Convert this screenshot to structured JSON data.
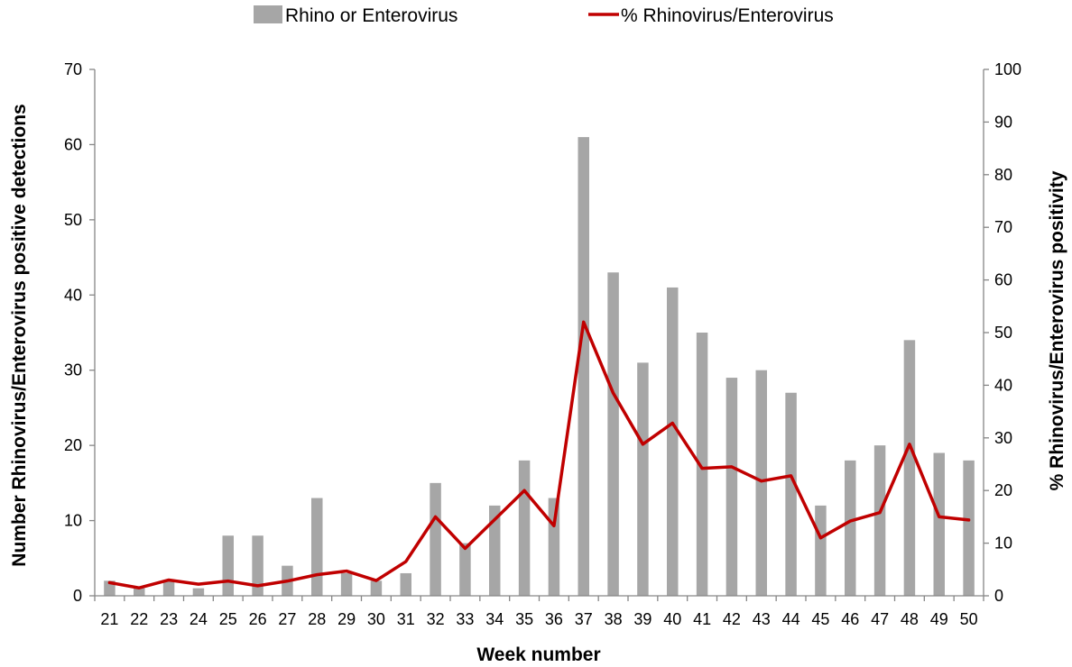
{
  "chart_data": {
    "type": "bar",
    "categories": [
      "21",
      "22",
      "23",
      "24",
      "25",
      "26",
      "27",
      "28",
      "29",
      "30",
      "31",
      "32",
      "33",
      "34",
      "35",
      "36",
      "37",
      "38",
      "39",
      "40",
      "41",
      "42",
      "43",
      "44",
      "45",
      "46",
      "47",
      "48",
      "49",
      "50"
    ],
    "series": [
      {
        "name": "Rhino or Enterovirus",
        "type": "bar",
        "axis": "left",
        "color": "#a6a6a6",
        "values": [
          2,
          1,
          2,
          1,
          8,
          8,
          4,
          13,
          3,
          2,
          3,
          15,
          7,
          12,
          18,
          13,
          61,
          43,
          31,
          41,
          35,
          29,
          30,
          27,
          12,
          18,
          20,
          34,
          19,
          18
        ]
      },
      {
        "name": "% Rhinovirus/Enterovirus",
        "type": "line",
        "axis": "right",
        "color": "#c00000",
        "values": [
          2.5,
          1.5,
          3,
          2.2,
          2.8,
          1.9,
          2.8,
          4,
          4.7,
          2.9,
          6.5,
          15,
          9,
          14.5,
          20,
          13.3,
          52,
          38.5,
          28.8,
          32.8,
          24.2,
          24.5,
          21.8,
          22.8,
          11,
          14.2,
          15.8,
          28.8,
          15,
          14.4
        ]
      }
    ],
    "title": "",
    "xlabel": "Week number",
    "ylabel": "Number Rhinovirus/Enterovirus positive detections",
    "y2label": "% Rhinovirus/Enterovirus positivity",
    "ylim": [
      0,
      70
    ],
    "y2lim": [
      0,
      100
    ],
    "yticks": [
      "0",
      "10",
      "20",
      "30",
      "40",
      "50",
      "60",
      "70"
    ],
    "y2ticks": [
      "0",
      "10",
      "20",
      "30",
      "40",
      "50",
      "60",
      "70",
      "80",
      "90",
      "100"
    ],
    "grid": false,
    "legend_position": "top-center"
  }
}
